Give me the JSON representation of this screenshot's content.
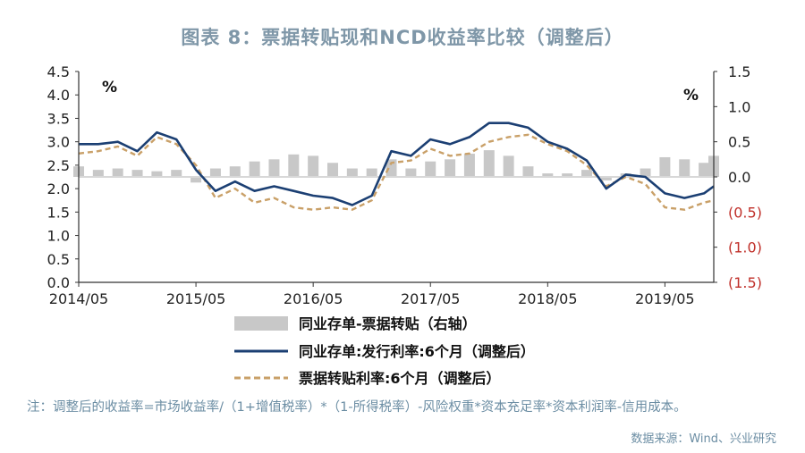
{
  "title": "图表 8：票据转贴现和NCD收益率比较（调整后）",
  "note": "注：调整后的收益率=市场收益率/（1+增值税率）*（1-所得税率）-风险权重*资本充足率*资本利润率-信用成本。",
  "source": "数据来源：Wind、兴业研究",
  "colors": {
    "ncd": "#1b3f73",
    "bill": "#c9a068",
    "spread": "#c8c8c8",
    "negative_tick": "#c0302a"
  },
  "chart_data": {
    "type": "line",
    "left_unit": "%",
    "right_unit": "%",
    "x_ticks": [
      "2014/05",
      "2015/05",
      "2016/05",
      "2017/05",
      "2018/05",
      "2019/05"
    ],
    "x_range": [
      "2014-05",
      "2019-10"
    ],
    "y_left": {
      "lim": [
        0.0,
        4.5
      ],
      "ticks": [
        "0.0",
        "0.5",
        "1.0",
        "1.5",
        "2.0",
        "2.5",
        "3.0",
        "3.5",
        "4.0",
        "4.5"
      ]
    },
    "y_right": {
      "lim": [
        -1.5,
        1.5
      ],
      "ticks": [
        "1.5",
        "1.0",
        "0.5",
        "0.0",
        "(0.5)",
        "(1.0)",
        "(1.5)"
      ],
      "tick_values": [
        1.5,
        1.0,
        0.5,
        0.0,
        -0.5,
        -1.0,
        -1.5
      ]
    },
    "legend": [
      {
        "key": "spread",
        "label": "同业存单-票据转贴（右轴）"
      },
      {
        "key": "ncd",
        "label": "同业存单:发行利率:6个月（调整后）"
      },
      {
        "key": "bill",
        "label": "票据转贴利率:6个月（调整后）"
      }
    ],
    "x": [
      "2014-05",
      "2014-07",
      "2014-09",
      "2014-11",
      "2015-01",
      "2015-03",
      "2015-05",
      "2015-07",
      "2015-09",
      "2015-11",
      "2016-01",
      "2016-03",
      "2016-05",
      "2016-07",
      "2016-09",
      "2016-11",
      "2017-01",
      "2017-03",
      "2017-05",
      "2017-07",
      "2017-09",
      "2017-11",
      "2018-01",
      "2018-03",
      "2018-05",
      "2018-07",
      "2018-09",
      "2018-11",
      "2019-01",
      "2019-03",
      "2019-05",
      "2019-07",
      "2019-09",
      "2019-10"
    ],
    "series": [
      {
        "key": "ncd",
        "name": "同业存单:发行利率:6个月（调整后）",
        "axis": "left",
        "values": [
          2.95,
          2.95,
          3.0,
          2.8,
          3.2,
          3.05,
          2.4,
          1.95,
          2.15,
          1.95,
          2.05,
          1.95,
          1.85,
          1.8,
          1.65,
          1.85,
          2.8,
          2.7,
          3.05,
          2.95,
          3.1,
          3.4,
          3.4,
          3.3,
          3.0,
          2.85,
          2.6,
          2.0,
          2.3,
          2.25,
          1.9,
          1.8,
          1.9,
          2.05
        ]
      },
      {
        "key": "bill",
        "name": "票据转贴利率:6个月（调整后）",
        "axis": "left",
        "values": [
          2.75,
          2.8,
          2.9,
          2.7,
          3.1,
          2.95,
          2.5,
          1.8,
          2.0,
          1.7,
          1.8,
          1.6,
          1.55,
          1.6,
          1.55,
          1.75,
          2.55,
          2.6,
          2.85,
          2.7,
          2.75,
          3.0,
          3.1,
          3.15,
          2.95,
          2.8,
          2.5,
          2.05,
          2.25,
          2.1,
          1.6,
          1.55,
          1.7,
          1.75
        ]
      },
      {
        "key": "spread",
        "name": "同业存单-票据转贴（右轴）",
        "axis": "right",
        "values": [
          0.15,
          0.1,
          0.12,
          0.1,
          0.08,
          0.1,
          -0.08,
          0.12,
          0.15,
          0.22,
          0.25,
          0.32,
          0.3,
          0.2,
          0.12,
          0.12,
          0.25,
          0.12,
          0.22,
          0.25,
          0.33,
          0.38,
          0.3,
          0.15,
          0.05,
          0.05,
          0.1,
          -0.05,
          0.05,
          0.12,
          0.28,
          0.25,
          0.2,
          0.3
        ]
      }
    ]
  }
}
